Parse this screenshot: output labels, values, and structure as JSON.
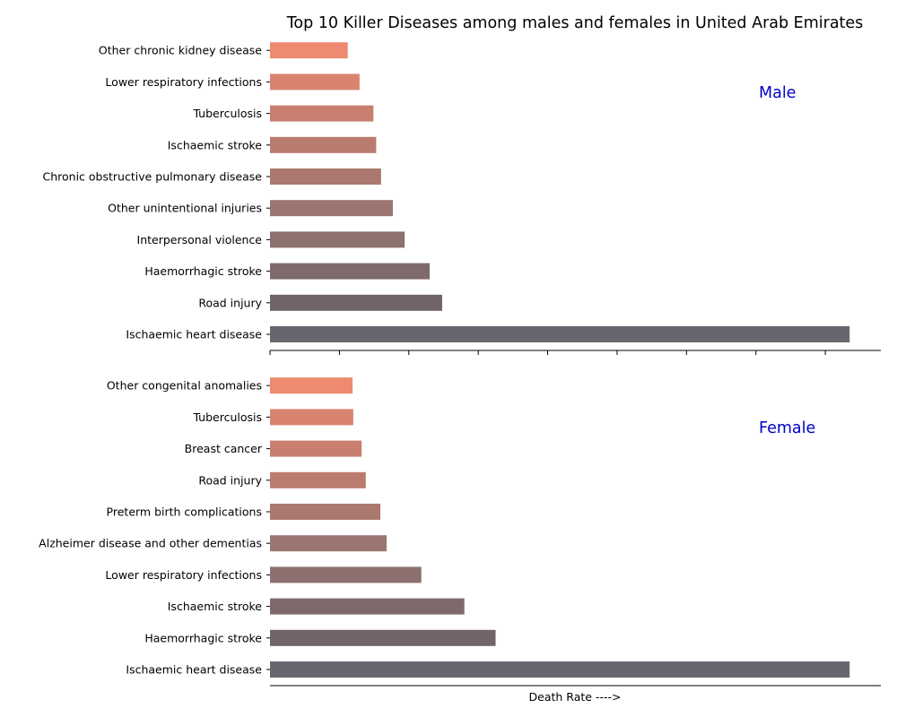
{
  "chart_data": {
    "type": "bar",
    "orientation": "horizontal",
    "title": "Top 10 Killer Diseases among males and females in United Arab Emirates",
    "xlabel": "Death Rate ---->",
    "x_tick_labels_visible": false,
    "panels": [
      {
        "name": "Male",
        "label_color": "#0000cc",
        "categories": [
          "Ischaemic heart disease",
          "Road injury",
          "Haemorrhagic stroke",
          "Interpersonal violence",
          "Other unintentional injuries",
          "Chronic obstructive pulmonary disease",
          "Ischaemic stroke",
          "Tuberculosis",
          "Lower respiratory infections",
          "Other chronic kidney disease"
        ],
        "values": [
          83.5,
          24.8,
          23.0,
          19.4,
          17.7,
          16.0,
          15.3,
          14.9,
          12.9,
          11.2
        ],
        "xlim": [
          0,
          88
        ]
      },
      {
        "name": "Female",
        "label_color": "#0000cc",
        "categories": [
          "Ischaemic heart disease",
          "Haemorrhagic stroke",
          "Ischaemic stroke",
          "Lower respiratory infections",
          "Alzheimer disease and other dementias",
          "Preterm birth complications",
          "Road injury",
          "Breast cancer",
          "Tuberculosis",
          "Other congenital anomalies"
        ],
        "values": [
          83.5,
          32.5,
          28.0,
          21.8,
          16.8,
          15.9,
          13.8,
          13.2,
          12.0,
          11.9
        ],
        "xlim": [
          0,
          88
        ]
      }
    ],
    "colors": [
      "#66666e",
      "#716469",
      "#7e6a6c",
      "#8d716e",
      "#9b7571",
      "#aa786f",
      "#b97c6f",
      "#c97f6f",
      "#d9836f",
      "#ee8a70"
    ],
    "grid": false
  }
}
